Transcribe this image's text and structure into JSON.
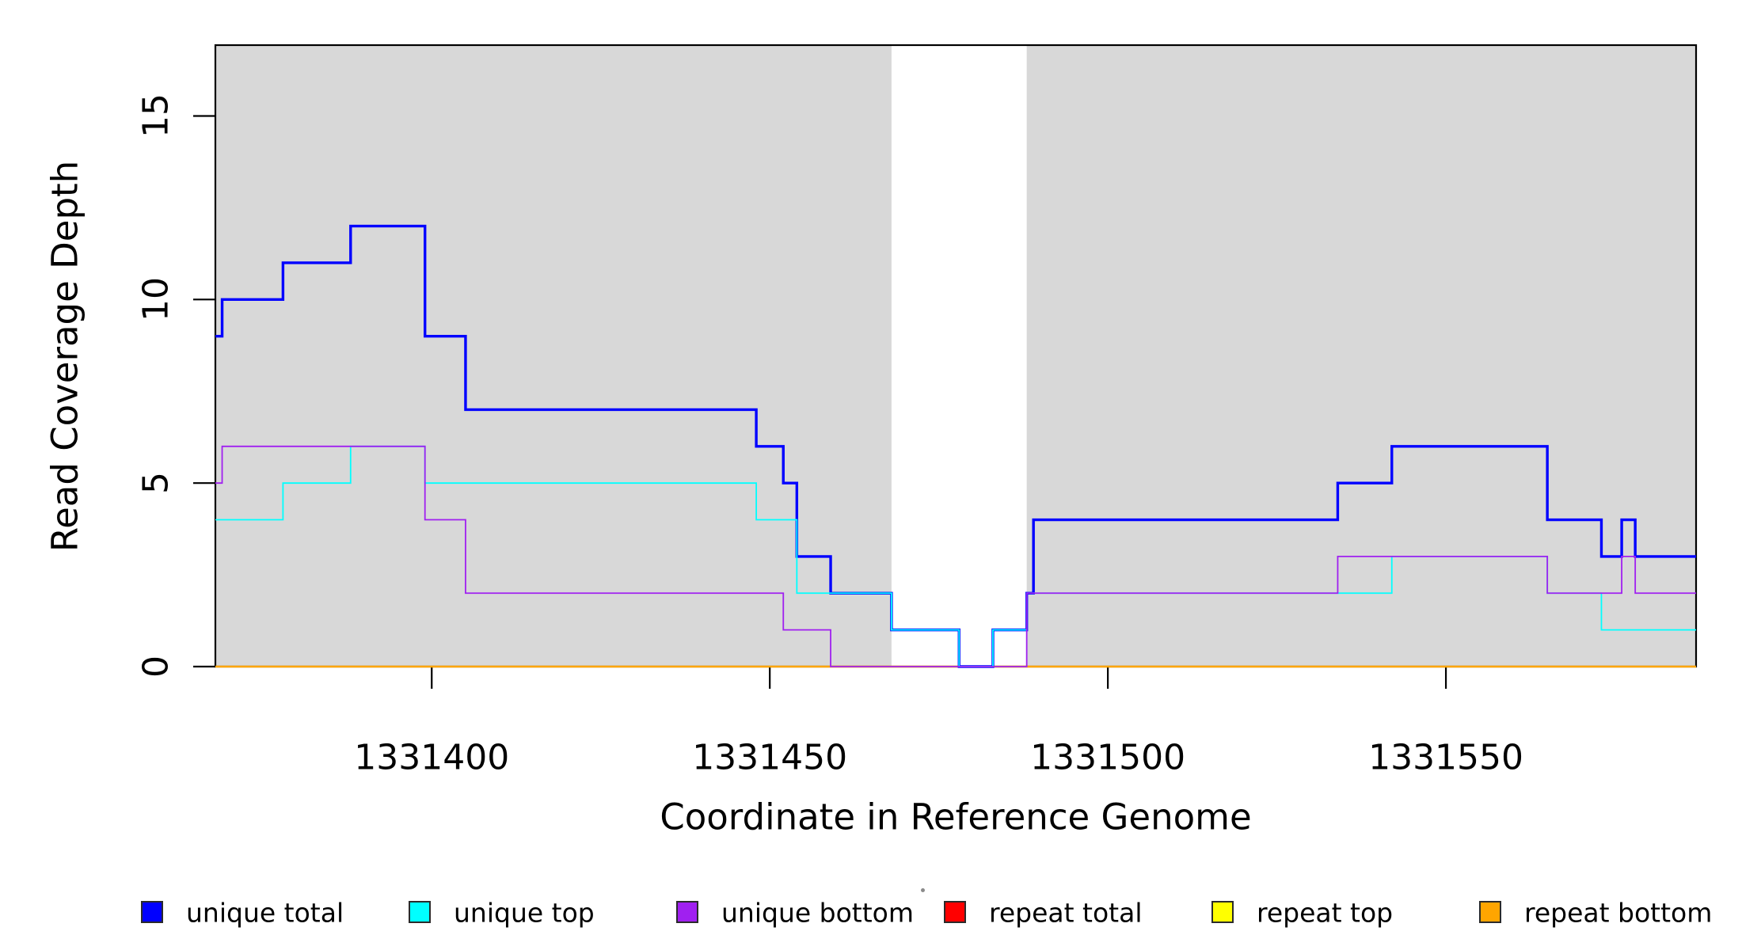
{
  "chart_data": {
    "type": "line",
    "subtype": "step-post",
    "title": "",
    "xlabel": "Coordinate in Reference Genome",
    "ylabel": "Read Coverage Depth",
    "xlim": [
      1331368,
      1331587
    ],
    "ylim": [
      0,
      16.93
    ],
    "x_ticks": [
      "1331400",
      "1331450",
      "1331500",
      "1331550"
    ],
    "x_tick_values": [
      1331400,
      1331450,
      1331500,
      1331550
    ],
    "y_ticks": [
      "0",
      "5",
      "10",
      "15"
    ],
    "y_tick_values": [
      0,
      5,
      10,
      15
    ],
    "grid": false,
    "plot_background": "#ffffff",
    "shaded_regions": [
      {
        "x0": 1331368,
        "x1": 1331468,
        "color": "#d8d8d8"
      },
      {
        "x0": 1331488,
        "x1": 1331587,
        "color": "#d8d8d8"
      }
    ],
    "series": [
      {
        "name": "repeat total",
        "color": "#ff0000",
        "width": 1.8,
        "x": [
          1331368
        ],
        "y": [
          0
        ]
      },
      {
        "name": "repeat top",
        "color": "#ffff00",
        "width": 1.8,
        "x": [
          1331368
        ],
        "y": [
          0
        ]
      },
      {
        "name": "repeat bottom",
        "color": "#ffa500",
        "width": 2.6,
        "x": [
          1331368
        ],
        "y": [
          0
        ]
      },
      {
        "name": "unique total",
        "color": "#0000ff",
        "width": 3.4,
        "x": [
          1331368,
          1331369,
          1331378,
          1331388,
          1331399,
          1331405,
          1331448,
          1331452,
          1331454,
          1331459,
          1331468,
          1331478,
          1331483,
          1331488,
          1331489,
          1331534,
          1331542,
          1331565,
          1331573,
          1331576,
          1331578
        ],
        "y": [
          9,
          10,
          11,
          12,
          9,
          7,
          6,
          5,
          3,
          2,
          1,
          0,
          1,
          2,
          4,
          5,
          6,
          4,
          3,
          4,
          3
        ]
      },
      {
        "name": "unique top",
        "color": "#00ffff",
        "width": 1.8,
        "x": [
          1331368,
          1331378,
          1331388,
          1331399,
          1331448,
          1331454,
          1331468,
          1331478,
          1331483,
          1331488,
          1331542,
          1331565,
          1331573
        ],
        "y": [
          4,
          5,
          6,
          5,
          4,
          2,
          1,
          0,
          1,
          2,
          3,
          2,
          1
        ]
      },
      {
        "name": "unique bottom",
        "color": "#a020f0",
        "width": 1.8,
        "x": [
          1331368,
          1331369,
          1331399,
          1331405,
          1331452,
          1331459,
          1331488,
          1331534,
          1331565,
          1331576,
          1331578
        ],
        "y": [
          5,
          6,
          4,
          2,
          1,
          0,
          2,
          3,
          2,
          3,
          2
        ]
      }
    ],
    "legend": [
      {
        "label": "unique total",
        "color": "#0000ff"
      },
      {
        "label": "unique top",
        "color": "#00ffff"
      },
      {
        "label": "unique bottom",
        "color": "#a020f0"
      },
      {
        "label": "repeat total",
        "color": "#ff0000"
      },
      {
        "label": "repeat top",
        "color": "#ffff00"
      },
      {
        "label": "repeat bottom",
        "color": "#ffa500"
      }
    ],
    "legend_position": "bottom"
  }
}
